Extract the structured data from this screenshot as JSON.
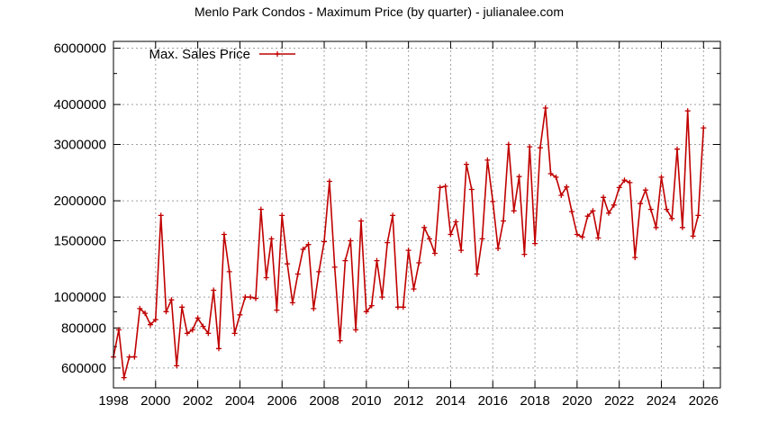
{
  "chart_data": {
    "type": "line",
    "title": "Menlo Park Condos - Maximum Price (by quarter) - julianalee.com",
    "xlabel": "",
    "ylabel": "",
    "y_scale": "log",
    "xlim": [
      1998,
      2026.8
    ],
    "ylim": [
      520000,
      6300000
    ],
    "x_ticks": [
      1998,
      2000,
      2002,
      2004,
      2006,
      2008,
      2010,
      2012,
      2014,
      2016,
      2018,
      2020,
      2022,
      2024,
      2026
    ],
    "y_ticks": [
      600000,
      800000,
      1000000,
      1500000,
      2000000,
      3000000,
      4000000,
      6000000
    ],
    "grid": true,
    "legend": "top-left",
    "series": [
      {
        "name": "Max. Sales Price",
        "color": "#c00000",
        "x": [
          1998.0,
          1998.25,
          1998.5,
          1998.75,
          1999.0,
          1999.25,
          1999.5,
          1999.75,
          2000.0,
          2000.25,
          2000.5,
          2000.75,
          2001.0,
          2001.25,
          2001.5,
          2001.75,
          2002.0,
          2002.25,
          2002.5,
          2002.75,
          2003.0,
          2003.25,
          2003.5,
          2003.75,
          2004.0,
          2004.25,
          2004.5,
          2004.75,
          2005.0,
          2005.25,
          2005.5,
          2005.75,
          2006.0,
          2006.25,
          2006.5,
          2006.75,
          2007.0,
          2007.25,
          2007.5,
          2007.75,
          2008.0,
          2008.25,
          2008.5,
          2008.75,
          2009.0,
          2009.25,
          2009.5,
          2009.75,
          2010.0,
          2010.25,
          2010.5,
          2010.75,
          2011.0,
          2011.25,
          2011.5,
          2011.75,
          2012.0,
          2012.25,
          2012.5,
          2012.75,
          2013.0,
          2013.25,
          2013.5,
          2013.75,
          2014.0,
          2014.25,
          2014.5,
          2014.75,
          2015.0,
          2015.25,
          2015.5,
          2015.75,
          2016.0,
          2016.25,
          2016.5,
          2016.75,
          2017.0,
          2017.25,
          2017.5,
          2017.75,
          2018.0,
          2018.25,
          2018.5,
          2018.75,
          2019.0,
          2019.25,
          2019.5,
          2019.75,
          2020.0,
          2020.25,
          2020.5,
          2020.75,
          2021.0,
          2021.25,
          2021.5,
          2021.75,
          2022.0,
          2022.25,
          2022.5,
          2022.75,
          2023.0,
          2023.25,
          2023.5,
          2023.75,
          2024.0,
          2024.25,
          2024.5,
          2024.75,
          2025.0,
          2025.25,
          2025.5,
          2025.75,
          2026.0
        ],
        "values": [
          650000,
          790000,
          560000,
          650000,
          650000,
          920000,
          890000,
          820000,
          850000,
          1800000,
          900000,
          980000,
          610000,
          930000,
          770000,
          790000,
          860000,
          810000,
          770000,
          1050000,
          690000,
          1570000,
          1200000,
          770000,
          880000,
          1000000,
          1000000,
          990000,
          1880000,
          1150000,
          1520000,
          910000,
          1800000,
          1270000,
          960000,
          1180000,
          1410000,
          1460000,
          920000,
          1200000,
          1490000,
          2300000,
          1240000,
          730000,
          1300000,
          1500000,
          790000,
          1730000,
          900000,
          940000,
          1300000,
          1000000,
          1480000,
          1800000,
          930000,
          930000,
          1400000,
          1060000,
          1280000,
          1650000,
          1520000,
          1370000,
          2200000,
          2220000,
          1570000,
          1720000,
          1400000,
          2600000,
          2170000,
          1180000,
          1520000,
          2680000,
          1990000,
          1420000,
          1730000,
          3000000,
          1860000,
          2380000,
          1360000,
          2950000,
          1470000,
          2930000,
          3900000,
          2430000,
          2370000,
          2080000,
          2210000,
          1850000,
          1570000,
          1540000,
          1790000,
          1860000,
          1530000,
          2050000,
          1830000,
          1940000,
          2200000,
          2320000,
          2280000,
          1330000,
          1960000,
          2160000,
          1880000,
          1650000,
          2370000,
          1880000,
          1760000,
          2900000,
          1650000,
          3820000,
          1550000,
          1800000,
          3380000
        ]
      }
    ]
  }
}
